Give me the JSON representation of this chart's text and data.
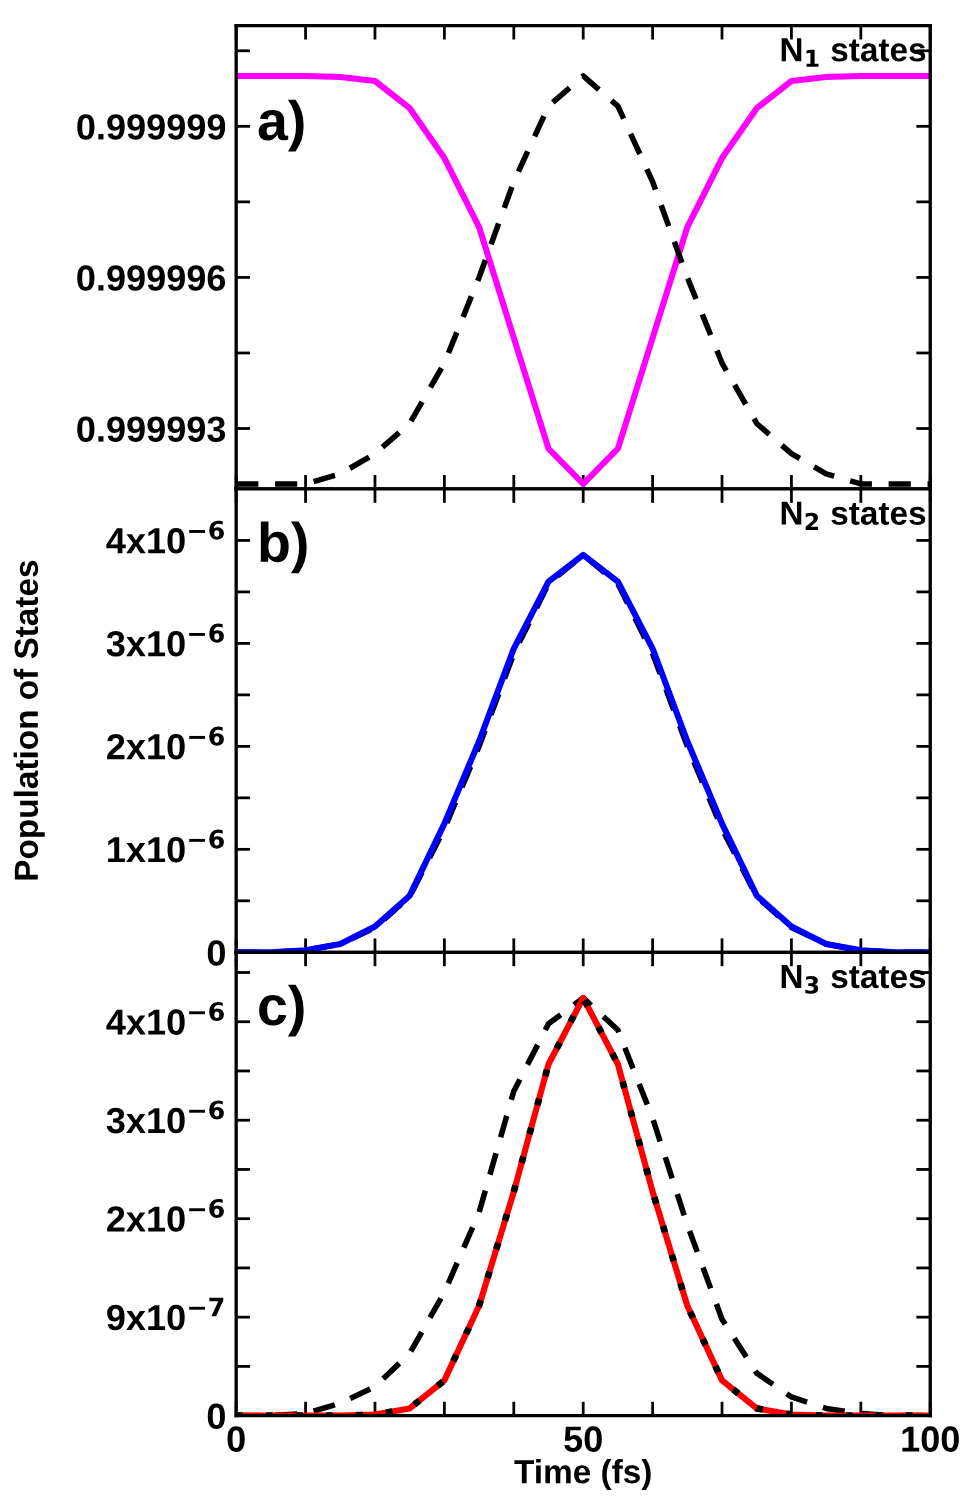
{
  "chart_data": [
    {
      "type": "line",
      "annotations": [
        "a)",
        "N$_{1}$ states"
      ],
      "x": [
        0,
        5,
        10,
        15,
        20,
        25,
        30,
        35,
        40,
        45,
        50,
        55,
        60,
        65,
        70,
        75,
        80,
        85,
        90,
        95,
        100
      ],
      "xlim": [
        0,
        100
      ],
      "xticks": [
        0,
        {
          "value": 10,
          "label": null
        },
        {
          "value": 20,
          "label": null
        },
        {
          "value": 30,
          "label": null
        },
        {
          "value": 40,
          "label": null
        },
        50,
        {
          "value": 60,
          "label": null
        },
        {
          "value": 70,
          "label": null
        },
        {
          "value": 80,
          "label": null
        },
        {
          "value": 90,
          "label": null
        },
        100
      ],
      "ylim": [
        0.9999918,
        1.000001
      ],
      "yticks": [
        0.999993,
        {
          "value": 0.9999945,
          "label": null
        },
        0.999996,
        {
          "value": 0.9999975,
          "label": null
        },
        0.999999,
        {
          "value": 1.0000005,
          "label": null
        }
      ],
      "tick_labels": "y",
      "series": [
        {
          "color": "#ff00ff",
          "line_style": "solid",
          "values": [
            1.0,
            1.0,
            1.0,
            0.99999998,
            0.9999999,
            0.99999936,
            0.99999837,
            0.999997,
            0.9999948,
            0.9999926,
            0.9999919,
            0.9999926,
            0.9999948,
            0.999997,
            0.99999837,
            0.99999936,
            0.9999999,
            0.99999998,
            1.0,
            1.0,
            1.0
          ]
        },
        {
          "color": "#000000",
          "line_style": "dashed",
          "values": [
            0.9999919,
            0.9999919,
            0.9999919,
            0.9999921,
            0.9999925,
            0.9999931,
            0.9999943,
            0.999996,
            0.9999979,
            0.9999994,
            1.0,
            0.9999994,
            0.9999979,
            0.999996,
            0.9999943,
            0.9999931,
            0.9999925,
            0.9999921,
            0.9999919,
            0.9999919,
            0.9999919
          ]
        }
      ]
    },
    {
      "type": "line",
      "annotations": [
        "b)",
        "N$_{2}$ states"
      ],
      "ylabel": "Population of States",
      "x": [
        0,
        5,
        10,
        15,
        20,
        25,
        30,
        35,
        40,
        45,
        50,
        55,
        60,
        65,
        70,
        75,
        80,
        85,
        90,
        95,
        100
      ],
      "xlim": [
        0,
        100
      ],
      "xticks": [
        0,
        {
          "value": 10,
          "label": null
        },
        {
          "value": 20,
          "label": null
        },
        {
          "value": 30,
          "label": null
        },
        {
          "value": 40,
          "label": null
        },
        50,
        {
          "value": 60,
          "label": null
        },
        {
          "value": 70,
          "label": null
        },
        {
          "value": 80,
          "label": null
        },
        {
          "value": 90,
          "label": null
        },
        100
      ],
      "ylim": [
        0,
        4.5e-06
      ],
      "yticks": [
        {
          "value": 0,
          "label": "0"
        },
        {
          "value": 5e-07,
          "label": null
        },
        {
          "value": 1e-06,
          "label": "1x10$^{−6}$"
        },
        {
          "value": 1.5e-06,
          "label": null
        },
        {
          "value": 2e-06,
          "label": "2x10$^{−6}$"
        },
        {
          "value": 2.5e-06,
          "label": null
        },
        {
          "value": 3e-06,
          "label": "3x10$^{−6}$"
        },
        {
          "value": 3.5e-06,
          "label": null
        },
        {
          "value": 4e-06,
          "label": "4x10$^{−6}$"
        }
      ],
      "tick_labels": "y",
      "series": [
        {
          "color": "#000000",
          "line_style": "dashed",
          "values": [
            0,
            0,
            2e-08,
            8e-08,
            2.4e-07,
            5.4e-07,
            1.2e-06,
            2e-06,
            2.9e-06,
            3.58e-06,
            3.86e-06,
            3.58e-06,
            2.9e-06,
            2e-06,
            1.2e-06,
            5.4e-07,
            2.4e-07,
            8e-08,
            2e-08,
            0,
            0
          ]
        },
        {
          "color": "#0000ff",
          "line_style": "solid",
          "values": [
            0,
            0,
            2e-08,
            8e-08,
            2.5e-07,
            5.5e-07,
            1.25e-06,
            2.05e-06,
            2.95e-06,
            3.6e-06,
            3.86e-06,
            3.6e-06,
            2.95e-06,
            2.05e-06,
            1.25e-06,
            5.5e-07,
            2.5e-07,
            8e-08,
            2e-08,
            0,
            0
          ]
        }
      ]
    },
    {
      "type": "line",
      "annotations": [
        "c)",
        "N$_{3}$ states"
      ],
      "xlabel": "Time (fs)",
      "x": [
        0,
        5,
        10,
        15,
        20,
        25,
        30,
        35,
        40,
        45,
        50,
        55,
        60,
        65,
        70,
        75,
        80,
        85,
        90,
        95,
        100
      ],
      "xlim": [
        0,
        100
      ],
      "xticks": [
        0,
        {
          "value": 10,
          "label": null
        },
        {
          "value": 20,
          "label": null
        },
        {
          "value": 30,
          "label": null
        },
        {
          "value": 40,
          "label": null
        },
        50,
        {
          "value": 60,
          "label": null
        },
        {
          "value": 70,
          "label": null
        },
        {
          "value": 80,
          "label": null
        },
        {
          "value": 90,
          "label": null
        },
        100
      ],
      "ylim": [
        0,
        4.47e-06
      ],
      "yticks": [
        {
          "value": 0,
          "label": "0"
        },
        {
          "value": 4.75e-07,
          "label": null
        },
        {
          "value": 9.5e-07,
          "label": "9x10$^{−7}$"
        },
        {
          "value": 1.425e-06,
          "label": null
        },
        {
          "value": 1.9e-06,
          "label": "2x10$^{−6}$"
        },
        {
          "value": 2.375e-06,
          "label": null
        },
        {
          "value": 2.85e-06,
          "label": "3x10$^{−6}$"
        },
        {
          "value": 3.325e-06,
          "label": null
        },
        {
          "value": 3.8e-06,
          "label": "4x10$^{−6}$"
        },
        {
          "value": 4.275e-06,
          "label": null
        }
      ],
      "series": [
        {
          "color": "#000000",
          "line_style": "dashed",
          "values": [
            0,
            0,
            2e-08,
            1.2e-07,
            2.8e-07,
            6e-07,
            1.19e-06,
            1.96e-06,
            3.13e-06,
            3.78e-06,
            4.03e-06,
            3.72e-06,
            2.87e-06,
            1.84e-06,
            9.3e-07,
            4.1e-07,
            1.8e-07,
            7e-08,
            2e-08,
            0,
            0
          ]
        },
        {
          "color": "#ff0000",
          "line_style": "solid",
          "values": [
            0,
            0,
            0,
            0,
            1e-08,
            7e-08,
            3.4e-07,
            1.06e-06,
            2.16e-06,
            3.39e-06,
            4.03e-06,
            3.39e-06,
            2.16e-06,
            1.06e-06,
            3.4e-07,
            7e-08,
            1e-08,
            0,
            0,
            0,
            0
          ]
        },
        {
          "color": "#000000",
          "line_style": "dotted",
          "values": [
            0,
            0,
            0,
            0,
            1e-08,
            7e-08,
            3.4e-07,
            1.06e-06,
            2.16e-06,
            3.39e-06,
            4.03e-06,
            3.39e-06,
            2.16e-06,
            1.06e-06,
            3.4e-07,
            7e-08,
            1e-08,
            0,
            0,
            0,
            0
          ]
        }
      ]
    }
  ]
}
